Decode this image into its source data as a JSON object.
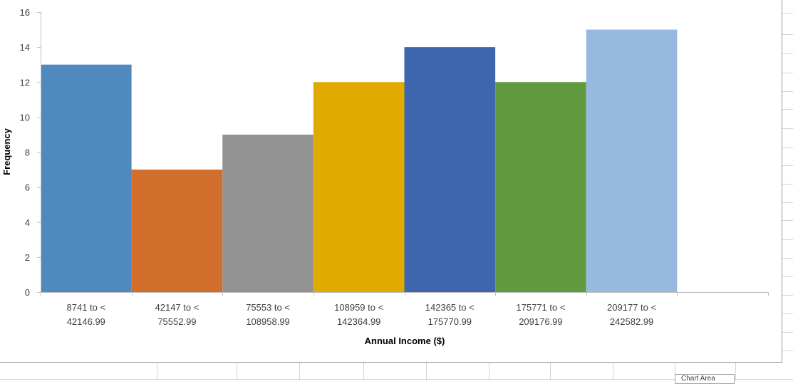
{
  "chart_data": {
    "type": "bar",
    "title": "",
    "xlabel": "Annual Income ($)",
    "ylabel": "Frequency",
    "ylim": [
      0,
      16
    ],
    "ytick_step": 2,
    "yticks": [
      "0",
      "2",
      "4",
      "6",
      "8",
      "10",
      "12",
      "14",
      "16"
    ],
    "categories": [
      [
        "8741 to <",
        "42146.99"
      ],
      [
        "42147 to <",
        "75552.99"
      ],
      [
        "75553 to <",
        "108958.99"
      ],
      [
        "108959 to <",
        "142364.99"
      ],
      [
        "142365 to <",
        "175770.99"
      ],
      [
        "175771 to <",
        "209176.99"
      ],
      [
        "209177 to <",
        "242582.99"
      ],
      [
        "",
        ""
      ]
    ],
    "values": [
      13,
      7,
      9,
      12,
      14,
      12,
      15,
      null
    ],
    "colors": [
      "#4f89bd",
      "#d16e2c",
      "#939393",
      "#e0aa00",
      "#3e66ae",
      "#629a3f",
      "#97b8df"
    ],
    "grid": false,
    "legend": "none"
  },
  "sheet_tab_label": "Chart Area"
}
